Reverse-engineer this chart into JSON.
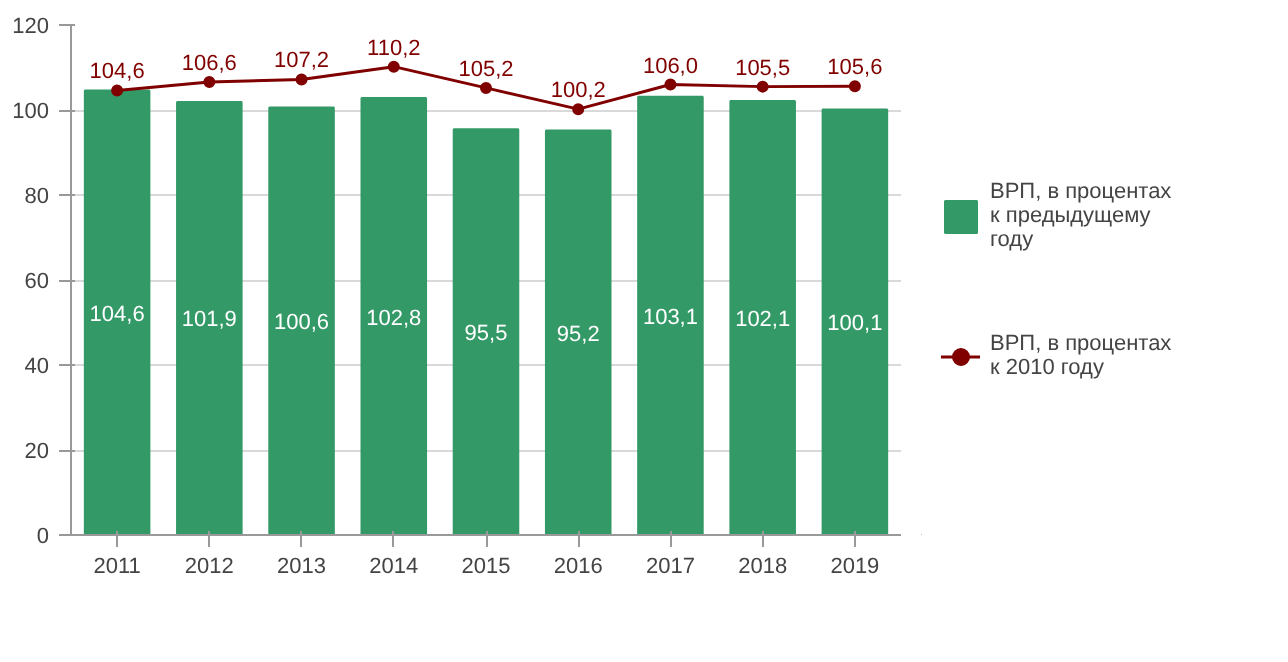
{
  "chart_data": {
    "type": "bar",
    "categories": [
      "2011",
      "2012",
      "2013",
      "2014",
      "2015",
      "2016",
      "2017",
      "2018",
      "2019"
    ],
    "series": [
      {
        "name": "ВРП, в процентах\nк предыдущему\nгоду",
        "color": "#339966",
        "values": [
          104.6,
          101.9,
          100.6,
          102.8,
          95.5,
          95.2,
          103.1,
          102.1,
          100.1
        ],
        "value_labels": [
          "104,6",
          "101,9",
          "100,6",
          "102,8",
          "95,5",
          "95,2",
          "103,1",
          "102,1",
          "100,1"
        ]
      },
      {
        "name": "ВРП, в процентах\nк 2010 году",
        "type": "line",
        "color": "#800000",
        "marker": "circle",
        "values": [
          104.6,
          106.6,
          107.2,
          110.2,
          105.2,
          100.2,
          106.0,
          105.5,
          105.6
        ],
        "value_labels": [
          "104,6",
          "106,6",
          "107,2",
          "110,2",
          "105,2",
          "100,2",
          "106,0",
          "105,5",
          "105,6"
        ]
      }
    ],
    "ylim": [
      0,
      120
    ],
    "yticks": [
      0,
      20,
      40,
      60,
      80,
      100,
      120
    ],
    "grid": "y",
    "legend": "right"
  }
}
